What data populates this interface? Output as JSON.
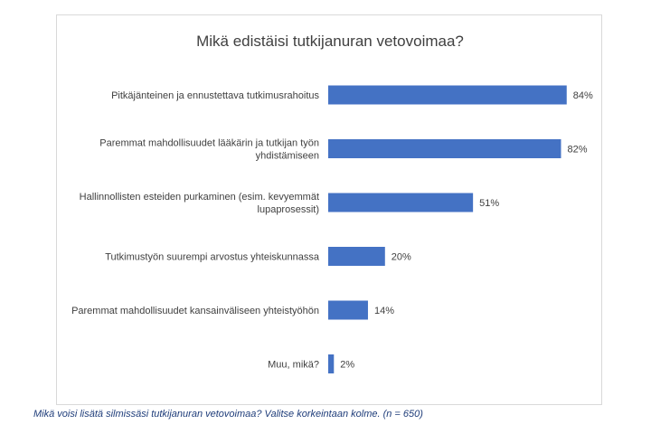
{
  "chart_data": {
    "type": "bar",
    "orientation": "horizontal",
    "title": "Mikä edistäisi tutkijanuran vetovoimaa?",
    "categories": [
      [
        "Pitkäjänteinen ja ennustettava tutkimusrahoitus"
      ],
      [
        "Paremmat mahdollisuudet lääkärin ja tutkijan työn",
        "yhdistämiseen"
      ],
      [
        "Hallinnollisten esteiden purkaminen (esim. kevyemmät",
        "lupaprosessit)"
      ],
      [
        "Tutkimustyön suurempi arvostus yhteiskunnassa"
      ],
      [
        "Paremmat mahdollisuudet kansainväliseen yhteistyöhön"
      ],
      [
        "Muu, mikä?"
      ]
    ],
    "values": [
      84,
      82,
      51,
      20,
      14,
      2
    ],
    "value_labels": [
      "84%",
      "82%",
      "51%",
      "20%",
      "14%",
      "2%"
    ],
    "xlim": [
      0,
      100
    ],
    "bar_color": "#4472c4",
    "gridlines": false,
    "legend": "none"
  },
  "caption": "Mikä voisi lisätä silmissäsi tutkijanuran vetovoimaa? Valitse korkeintaan kolme. (n = 650)"
}
